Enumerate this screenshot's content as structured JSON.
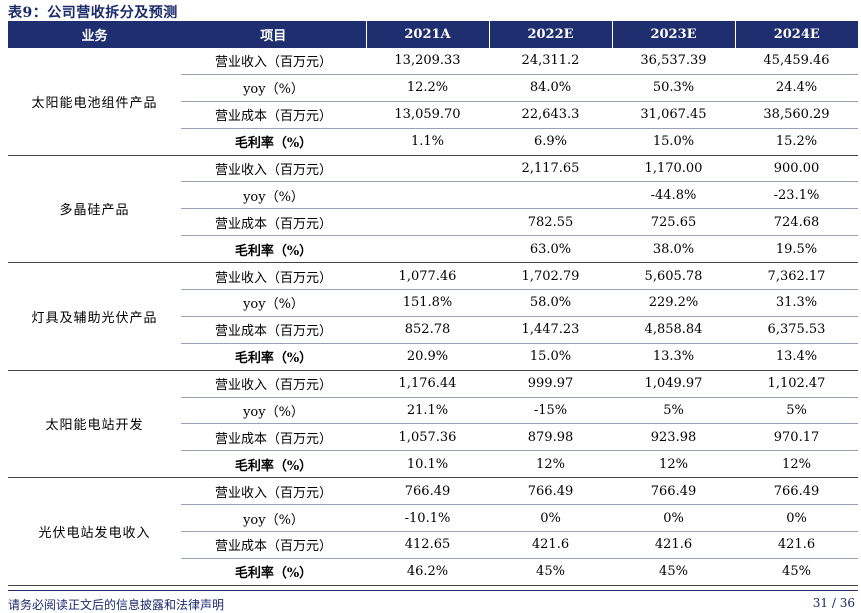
{
  "title": "表9：公司营收拆分及预测",
  "headers": [
    "业务",
    "项目",
    "2021A",
    "2022E",
    "2023E",
    "2024E"
  ],
  "segments": [
    {
      "name": "太阳能电池组件产品",
      "rows": [
        {
          "item": "营业收入（百万元）",
          "values": [
            "13,209.33",
            "24,311.2",
            "36,537.39",
            "45,459.46"
          ]
        },
        {
          "item": "yoy（%）",
          "values": [
            "12.2%",
            "84.0%",
            "50.3%",
            "24.4%"
          ]
        },
        {
          "item": "营业成本（百万元）",
          "values": [
            "13,059.70",
            "22,643.3",
            "31,067.45",
            "38,560.29"
          ]
        },
        {
          "item": "毛利率（%）",
          "bold": true,
          "values": [
            "1.1%",
            "6.9%",
            "15.0%",
            "15.2%"
          ]
        }
      ]
    },
    {
      "name": "多晶硅产品",
      "rows": [
        {
          "item": "营业收入（百万元）",
          "values": [
            "",
            "2,117.65",
            "1,170.00",
            "900.00"
          ]
        },
        {
          "item": "yoy（%）",
          "values": [
            "",
            "",
            "-44.8%",
            "-23.1%"
          ]
        },
        {
          "item": "营业成本（百万元）",
          "values": [
            "",
            "782.55",
            "725.65",
            "724.68"
          ]
        },
        {
          "item": "毛利率（%）",
          "bold": true,
          "values": [
            "",
            "63.0%",
            "38.0%",
            "19.5%"
          ]
        }
      ]
    },
    {
      "name": "灯具及辅助光伏产品",
      "rows": [
        {
          "item": "营业收入（百万元）",
          "values": [
            "1,077.46",
            "1,702.79",
            "5,605.78",
            "7,362.17"
          ]
        },
        {
          "item": "yoy（%）",
          "values": [
            "151.8%",
            "58.0%",
            "229.2%",
            "31.3%"
          ]
        },
        {
          "item": "营业成本（百万元）",
          "values": [
            "852.78",
            "1,447.23",
            "4,858.84",
            "6,375.53"
          ]
        },
        {
          "item": "毛利率（%）",
          "bold": true,
          "values": [
            "20.9%",
            "15.0%",
            "13.3%",
            "13.4%"
          ]
        }
      ]
    },
    {
      "name": "太阳能电站开发",
      "rows": [
        {
          "item": "营业收入（百万元）",
          "values": [
            "1,176.44",
            "999.97",
            "1,049.97",
            "1,102.47"
          ]
        },
        {
          "item": "yoy（%）",
          "values": [
            "21.1%",
            "-15%",
            "5%",
            "5%"
          ]
        },
        {
          "item": "营业成本（百万元）",
          "values": [
            "1,057.36",
            "879.98",
            "923.98",
            "970.17"
          ]
        },
        {
          "item": "毛利率（%）",
          "bold": true,
          "values": [
            "10.1%",
            "12%",
            "12%",
            "12%"
          ]
        }
      ]
    },
    {
      "name": "光伏电站发电收入",
      "rows": [
        {
          "item": "营业收入（百万元）",
          "values": [
            "766.49",
            "766.49",
            "766.49",
            "766.49"
          ]
        },
        {
          "item": "yoy（%）",
          "values": [
            "-10.1%",
            "0%",
            "0%",
            "0%"
          ]
        },
        {
          "item": "营业成本（百万元）",
          "values": [
            "412.65",
            "421.6",
            "421.6",
            "421.6"
          ]
        },
        {
          "item": "毛利率（%）",
          "bold": true,
          "values": [
            "46.2%",
            "45%",
            "45%",
            "45%"
          ]
        }
      ]
    }
  ],
  "footer": {
    "disclaimer": "请务必阅读正文后的信息披露和法律声明",
    "page": "31 / 36"
  }
}
